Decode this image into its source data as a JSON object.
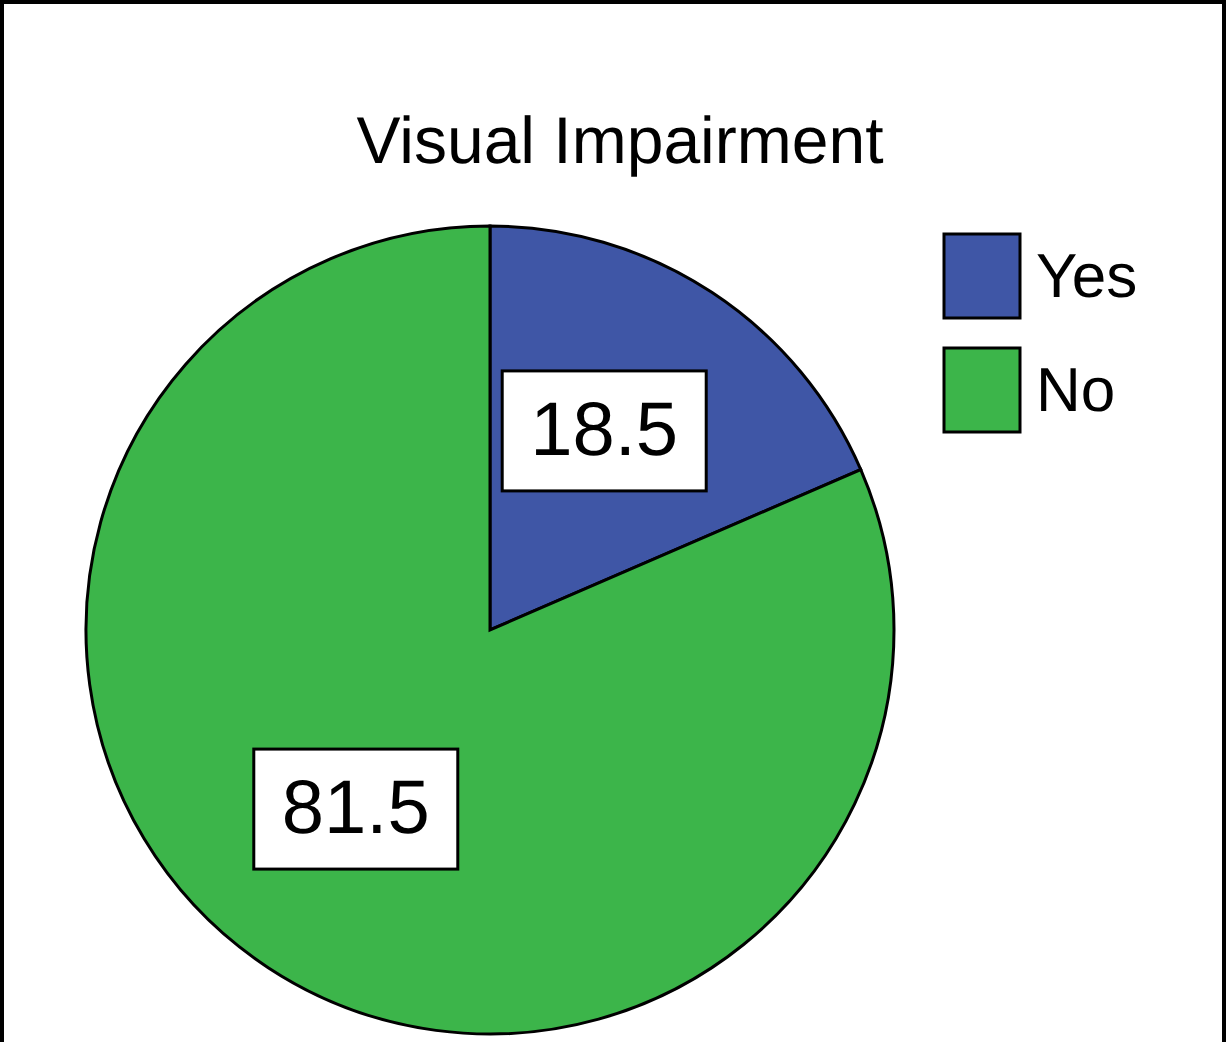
{
  "chart_data": {
    "type": "pie",
    "title": "Visual Impairment",
    "categories": [
      "Yes",
      "No"
    ],
    "values": [
      18.5,
      81.5
    ],
    "colors": [
      "#3f56a6",
      "#3cb54a"
    ],
    "data_labels": true,
    "legend": "top right"
  }
}
